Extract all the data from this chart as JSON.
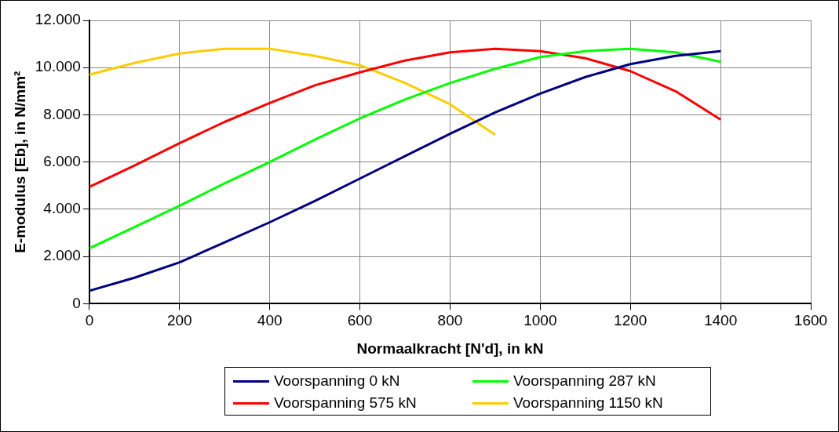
{
  "chart_data": {
    "type": "line",
    "xlabel": "Normaalkracht [N'd], in kN",
    "ylabel": "E-modulus [Eb], in N/mm²",
    "x": [
      0,
      100,
      200,
      300,
      400,
      500,
      600,
      700,
      800,
      900,
      1000,
      1100,
      1200,
      1300,
      1400
    ],
    "series": [
      {
        "name": "Voorspanning 0 kN",
        "color": "#000080",
        "values": [
          550,
          1100,
          1750,
          2600,
          3450,
          4350,
          5300,
          6250,
          7200,
          8100,
          8900,
          9600,
          10150,
          10500,
          10700
        ]
      },
      {
        "name": "Voorspanning 287 kN",
        "color": "#00ff00",
        "values": [
          2350,
          3250,
          4150,
          5100,
          6000,
          6950,
          7850,
          8650,
          9350,
          9950,
          10450,
          10700,
          10800,
          10650,
          10250
        ]
      },
      {
        "name": "Voorspanning 575 kN",
        "color": "#ff0000",
        "values": [
          4950,
          5850,
          6800,
          7700,
          8500,
          9250,
          9800,
          10300,
          10650,
          10800,
          10700,
          10400,
          9850,
          9000,
          7800
        ]
      },
      {
        "name": "Voorspanning 1150 kN",
        "color": "#ffcc00",
        "values": [
          9700,
          10200,
          10600,
          10800,
          10800,
          10500,
          10100,
          9350,
          8450,
          7150,
          null,
          null,
          null,
          null,
          null
        ]
      }
    ],
    "xlim": [
      0,
      1600
    ],
    "xticks": [
      0,
      200,
      400,
      600,
      800,
      1000,
      1200,
      1400,
      1600
    ],
    "ylim": [
      0,
      12000
    ],
    "yticks": [
      {
        "value": 0,
        "label": "0"
      },
      {
        "value": 2000,
        "label": "2.000"
      },
      {
        "value": 4000,
        "label": "4.000"
      },
      {
        "value": 6000,
        "label": "6.000"
      },
      {
        "value": 8000,
        "label": "8.000"
      },
      {
        "value": 10000,
        "label": "10.000"
      },
      {
        "value": 12000,
        "label": "12.000"
      }
    ],
    "grid": true,
    "legend": "bottom",
    "marker": "none",
    "line_style": "solid"
  }
}
